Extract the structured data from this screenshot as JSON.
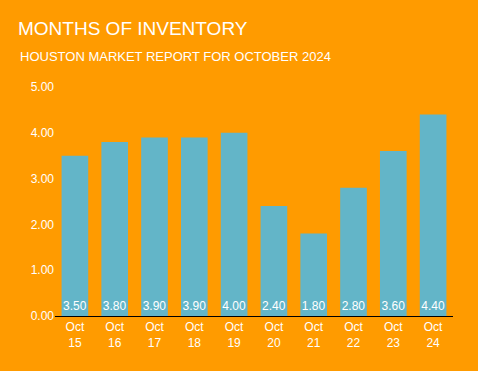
{
  "chart_data": {
    "type": "bar",
    "title": "MONTHS OF INVENTORY",
    "subtitle": "HOUSTON MARKET REPORT FOR OCTOBER 2024",
    "categories": [
      "Oct 15",
      "Oct 16",
      "Oct 17",
      "Oct 18",
      "Oct 19",
      "Oct 20",
      "Oct 21",
      "Oct 22",
      "Oct 23",
      "Oct 24"
    ],
    "values": [
      3.5,
      3.8,
      3.9,
      3.9,
      4.0,
      2.4,
      1.8,
      2.8,
      3.6,
      4.4
    ],
    "value_labels": [
      "3.50",
      "3.80",
      "3.90",
      "3.90",
      "4.00",
      "2.40",
      "1.80",
      "2.80",
      "3.60",
      "4.40"
    ],
    "color": "#63b5c8",
    "ylim": [
      0,
      5
    ],
    "yticks": [
      {
        "value": 0,
        "label": "0.00"
      },
      {
        "value": 1,
        "label": "1.00"
      },
      {
        "value": 2,
        "label": "2.00"
      },
      {
        "value": 3,
        "label": "3.00"
      },
      {
        "value": 4,
        "label": "4.00"
      },
      {
        "value": 5,
        "label": "5.00"
      }
    ],
    "grid": false,
    "data_labels": true
  }
}
